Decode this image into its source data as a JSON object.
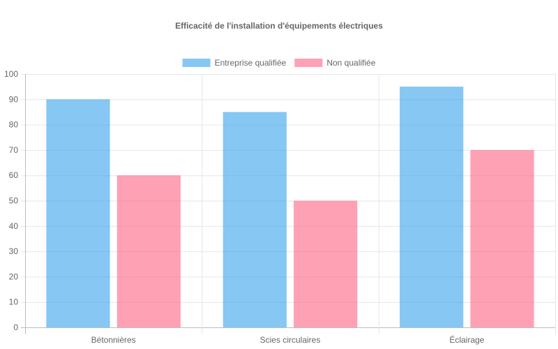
{
  "chart_data": {
    "type": "bar",
    "title": "Efficacité de l'installation d'équipements électriques",
    "categories": [
      "Bétonnières",
      "Scies circulaires",
      "Éclairage"
    ],
    "series": [
      {
        "name": "Entreprise qualifiée",
        "values": [
          90,
          85,
          95
        ],
        "color": "#36a2eb"
      },
      {
        "name": "Non qualifiée",
        "values": [
          60,
          50,
          70
        ],
        "color": "#ff6384"
      }
    ],
    "ylim": [
      0,
      100
    ],
    "yticks": [
      0,
      10,
      20,
      30,
      40,
      50,
      60,
      70,
      80,
      90,
      100
    ],
    "grid": true,
    "legend": "top-center"
  }
}
